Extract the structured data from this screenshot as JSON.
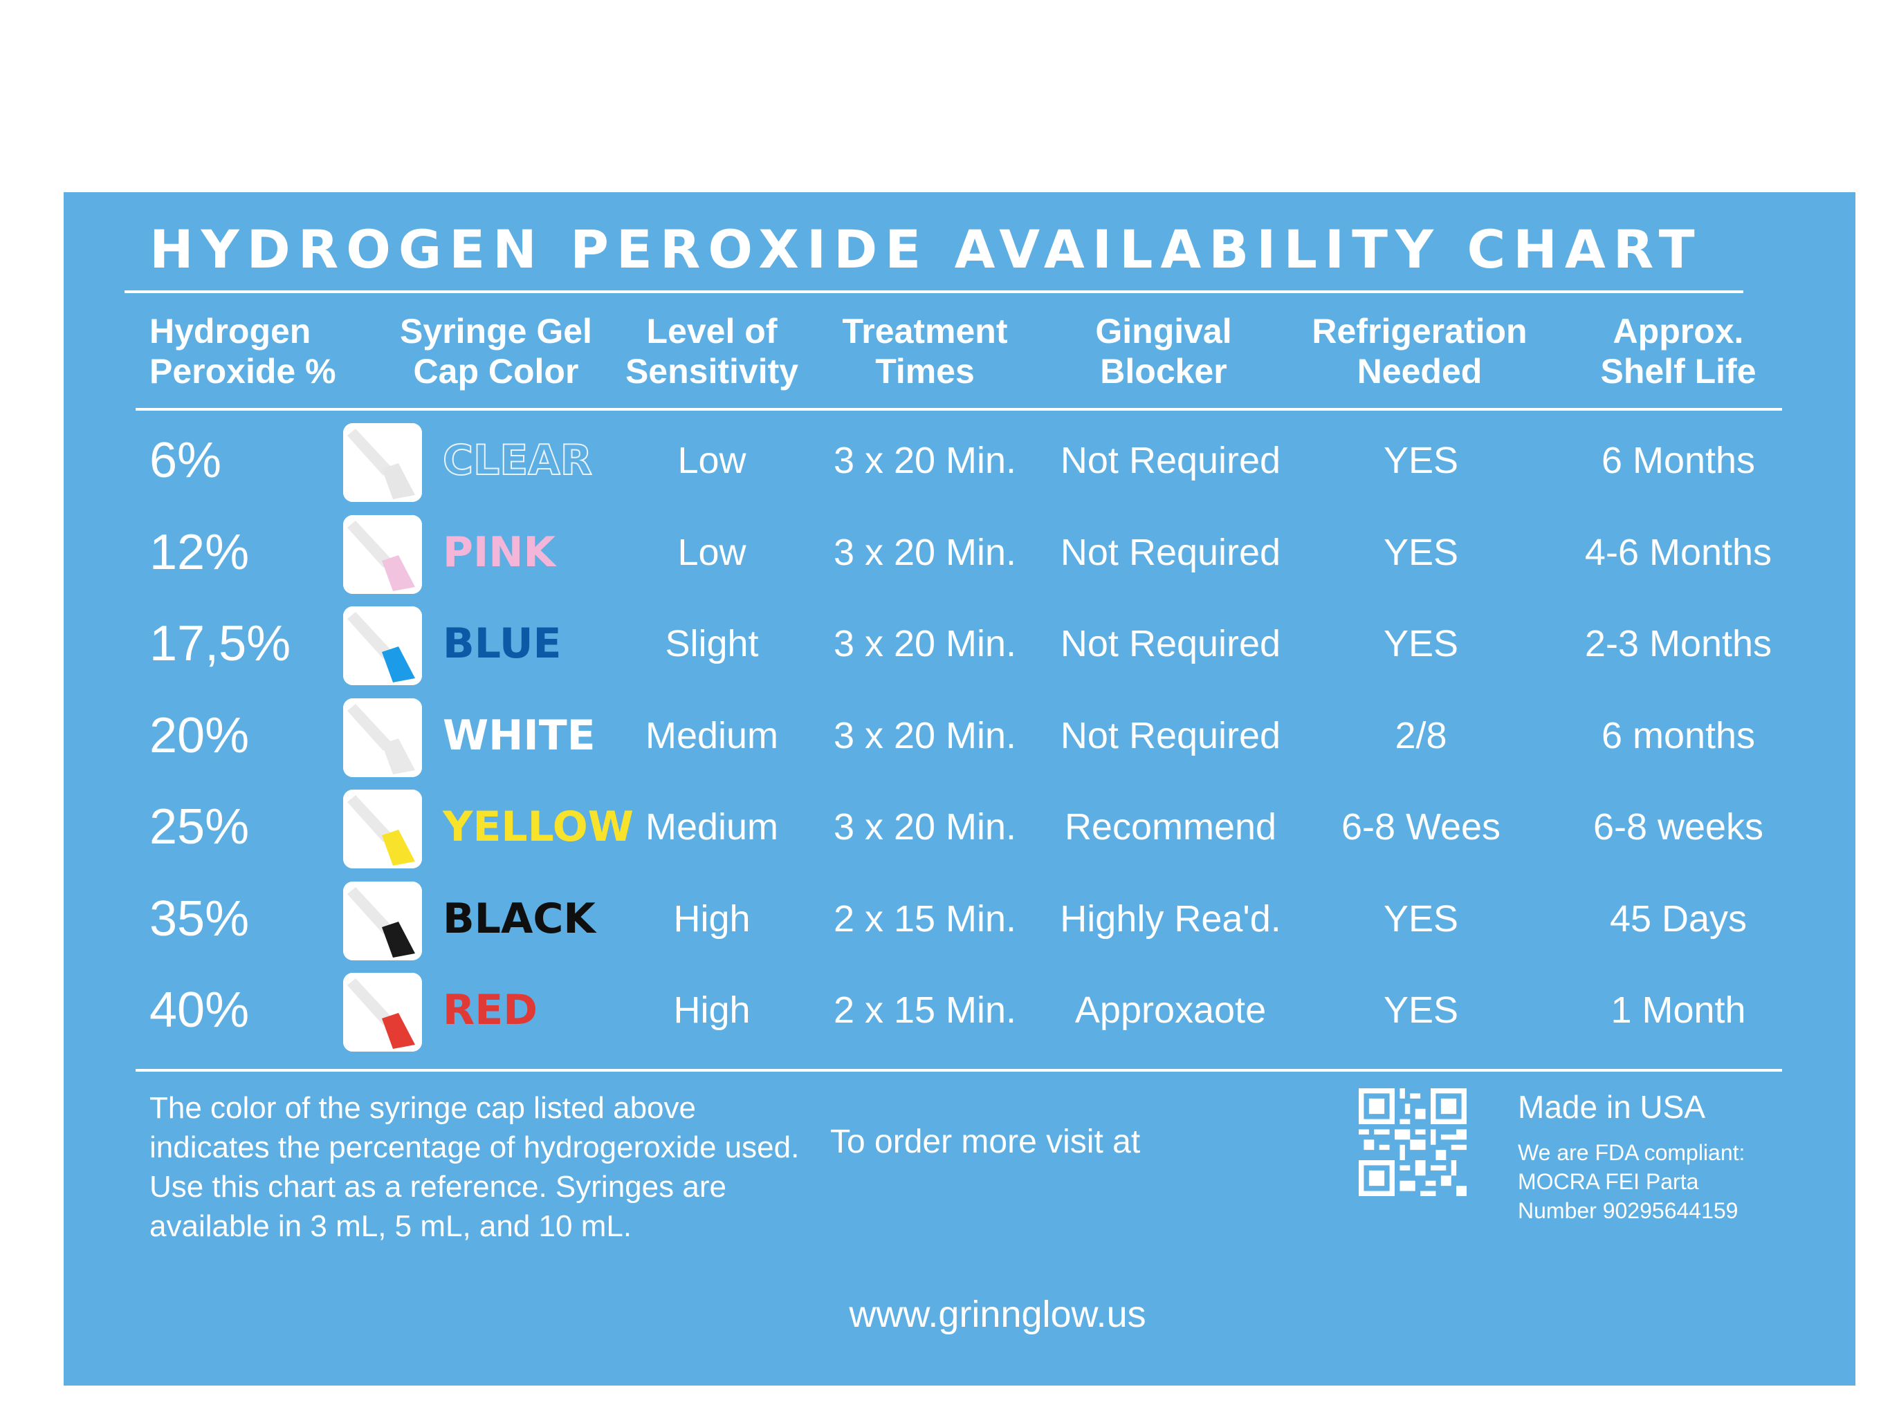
{
  "title": "HYDROGEN PEROXIDE AVAILABILITY CHART",
  "columns": [
    "Hydrogen\nPeroxide %",
    "Syringe Gel\nCap Color",
    "Level of\nSensitivity",
    "Treatment\nTimes",
    "Gingival\nBlocker",
    "Refrigeration\nNeeded",
    "Approx.\nShelf Life"
  ],
  "rows": [
    {
      "percent": "6%",
      "cap": "CLEAR",
      "cap_color": "#ffffff",
      "sensitivity": "Low",
      "treatment": "3 x 20 Min.",
      "blocker": "Not Required",
      "refrigeration": "YES",
      "shelf_life": "6 Months"
    },
    {
      "percent": "12%",
      "cap": "PINK",
      "cap_color": "#f4b6d8",
      "sensitivity": "Low",
      "treatment": "3 x 20 Min.",
      "blocker": "Not Required",
      "refrigeration": "YES",
      "shelf_life": "4-6 Months"
    },
    {
      "percent": "17,5%",
      "cap": "BLUE",
      "cap_color": "#0a5aa6",
      "sensitivity": "Slight",
      "treatment": "3 x 20 Min.",
      "blocker": "Not Required",
      "refrigeration": "YES",
      "shelf_life": "2-3 Months"
    },
    {
      "percent": "20%",
      "cap": "WHITE",
      "cap_color": "#ffffff",
      "sensitivity": "Medium",
      "treatment": "3 x 20 Min.",
      "blocker": "Not Required",
      "refrigeration": "2/8",
      "shelf_life": "6 months"
    },
    {
      "percent": "25%",
      "cap": "YELLOW",
      "cap_color": "#f8e32a",
      "sensitivity": "Medium",
      "treatment": "3 x 20 Min.",
      "blocker": "Recommend",
      "refrigeration": "6-8 Wees",
      "shelf_life": "6-8 weeks"
    },
    {
      "percent": "35%",
      "cap": "BLACK",
      "cap_color": "#0f0f0f",
      "sensitivity": "High",
      "treatment": "2 x 15 Min.",
      "blocker": "Highly Rea'd.",
      "refrigeration": "YES",
      "shelf_life": "45 Days"
    },
    {
      "percent": "40%",
      "cap": "RED",
      "cap_color": "#e03a36",
      "sensitivity": "High",
      "treatment": "2 x 15 Min.",
      "blocker": "Approxaote",
      "refrigeration": "YES",
      "shelf_life": "1 Month"
    }
  ],
  "footer": {
    "note": "The color of the syringe cap listed above indicates the percentage of hydrogeroxide used. Use this chart as a reference. Syringes are available in 3 mL, 5 mL, and 10 mL.",
    "order": "To order more visit at",
    "url": "www.grinnglow.us",
    "made_in": "Made in USA",
    "fda_lines": [
      "We are FDA compliant:",
      "MOCRA FEI Parta",
      "Number 90295644159"
    ]
  },
  "colors": {
    "background": "#5daee2",
    "text": "#ffffff",
    "swatch_tip_clear": "#e6e6e6",
    "swatch_tip_white": "#e9e9e9",
    "swatch_tip_pink": "#f2c3de",
    "swatch_tip_blue": "#1b9be8",
    "swatch_tip_yellow": "#f8e32a",
    "swatch_tip_black": "#1a1a1a",
    "swatch_tip_red": "#e43b33"
  }
}
